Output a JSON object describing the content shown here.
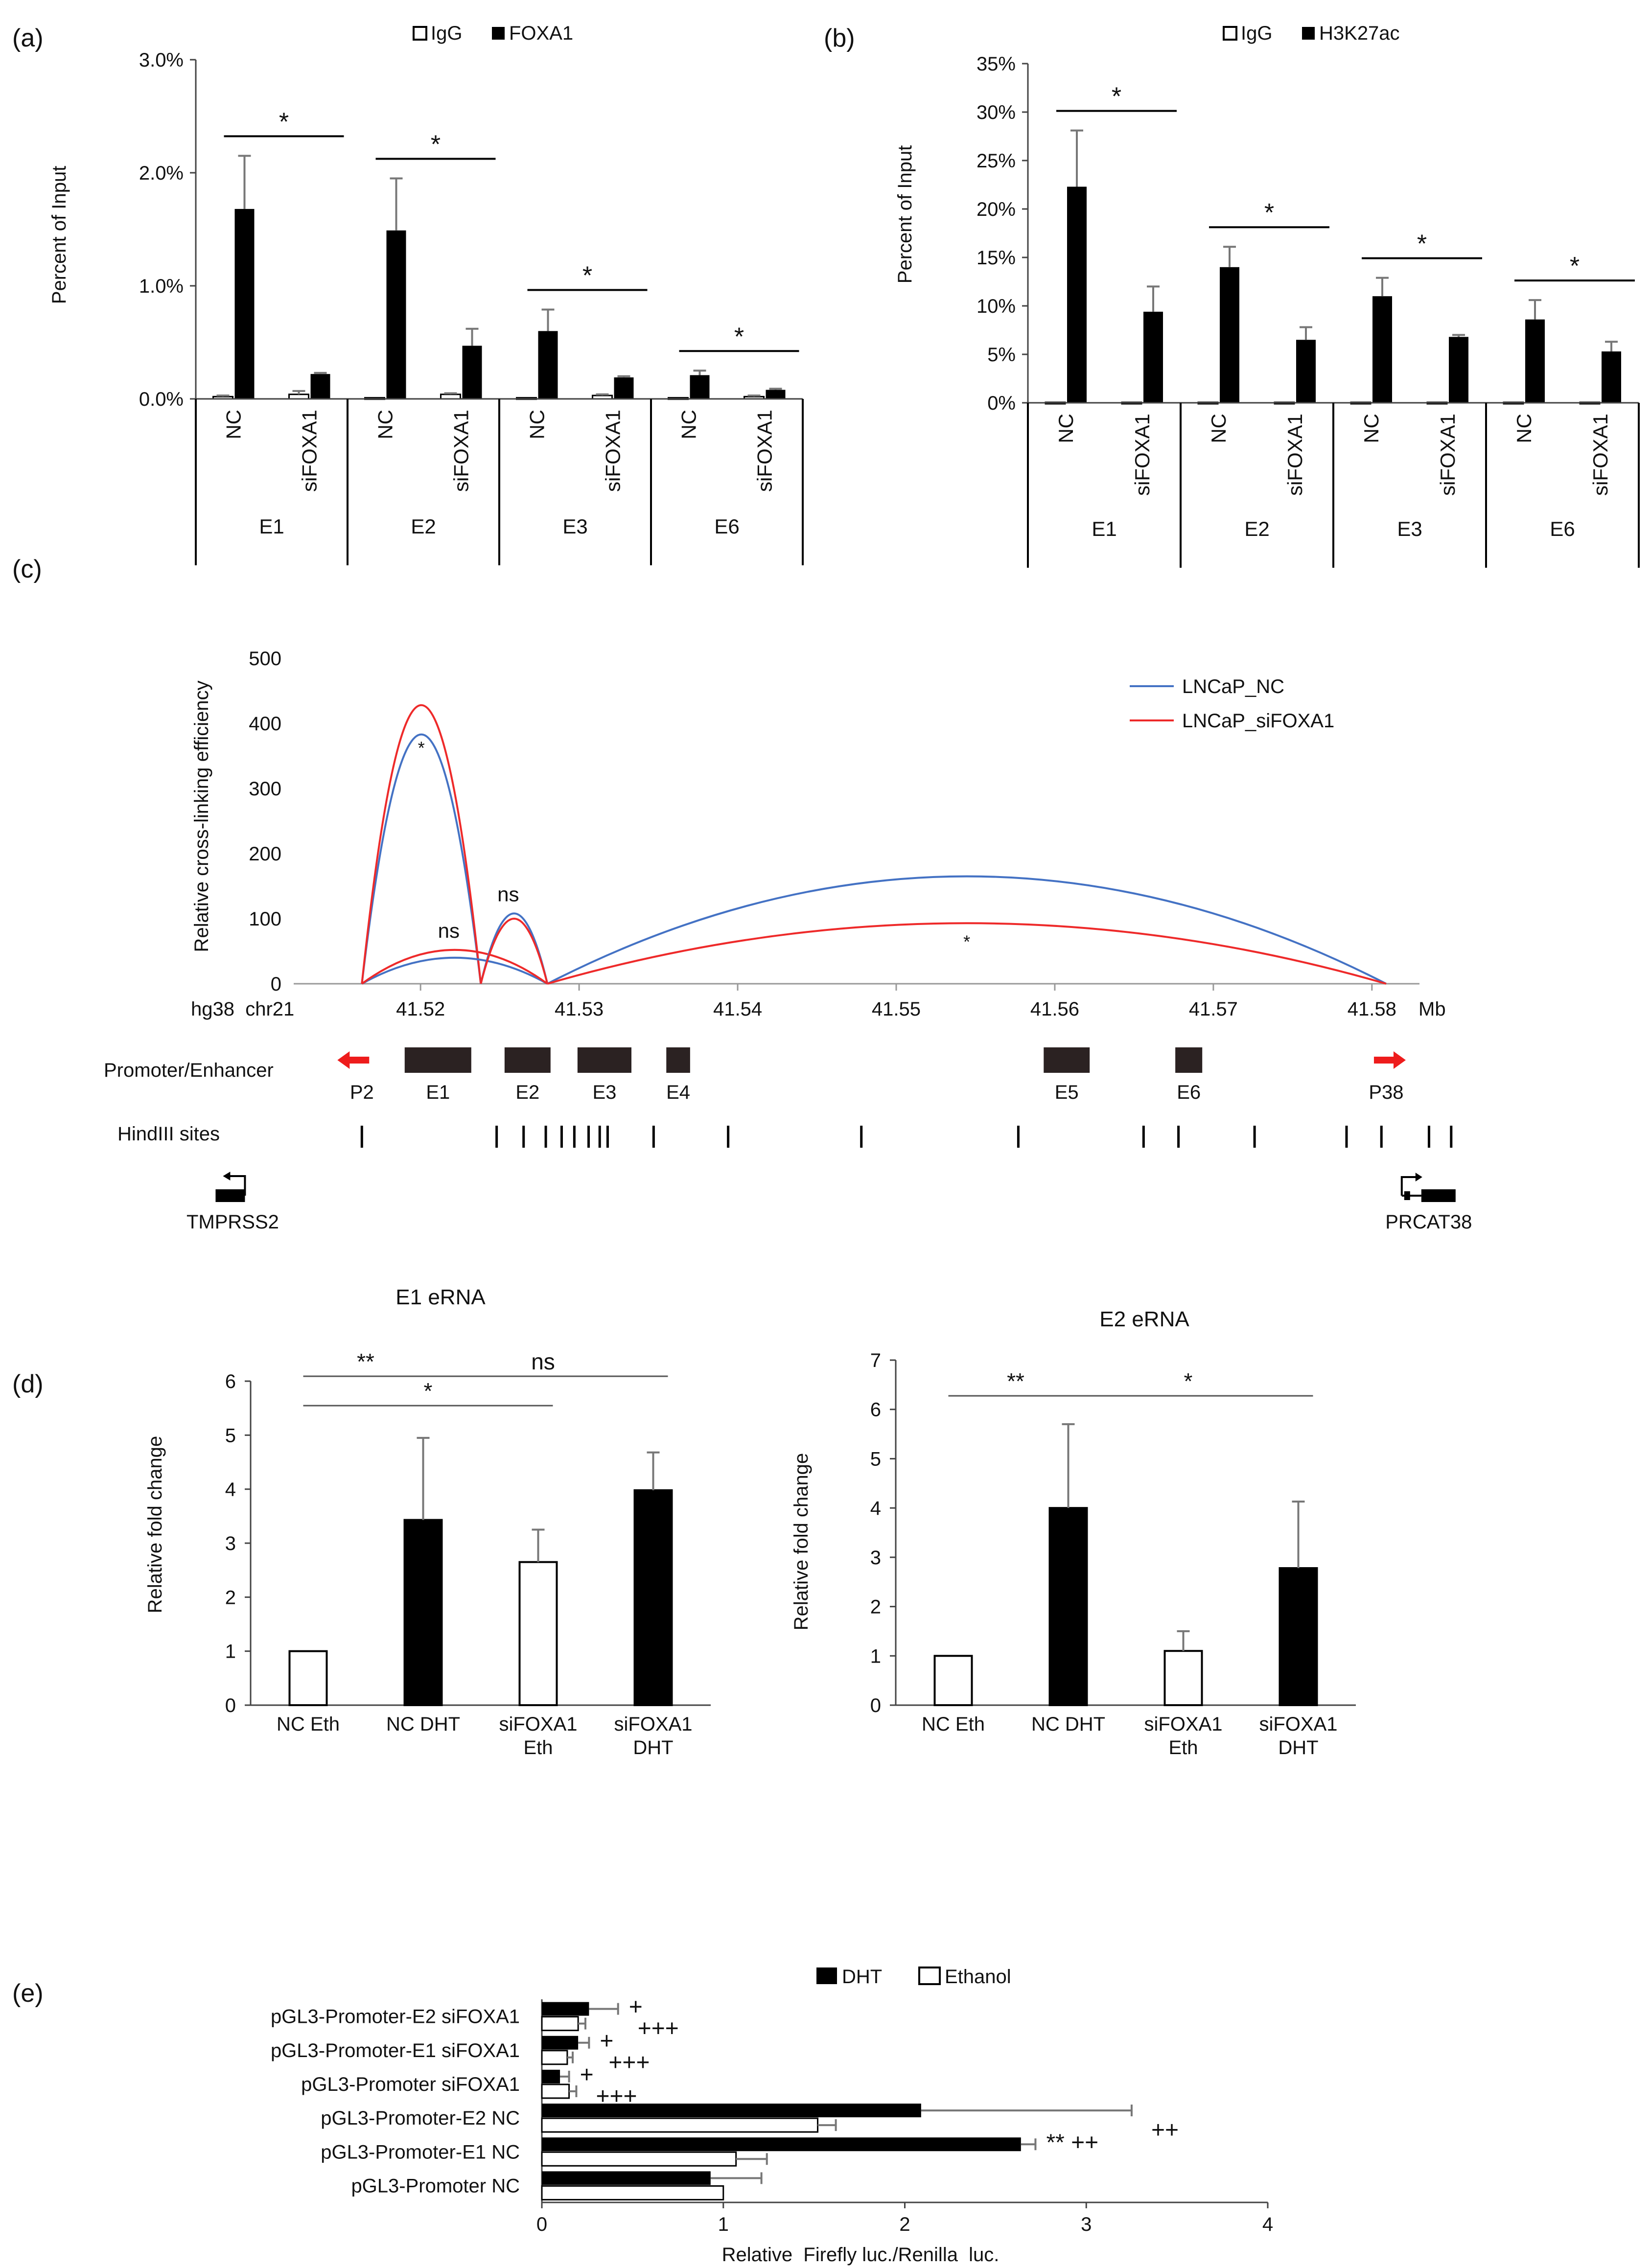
{
  "panels": {
    "a": {
      "label": "(a)",
      "ylabel": "Percent of Input",
      "legend": [
        "IgG",
        "FOXA1"
      ],
      "yticks": [
        "0.0%",
        "1.0%",
        "2.0%",
        "3.0%"
      ],
      "ymax": 0.03,
      "group_names": [
        "E1",
        "E2",
        "E3",
        "E6"
      ],
      "conditions": [
        "NC",
        "siFOXA1"
      ],
      "igg": [
        0.0002,
        0.0004,
        0.0001,
        0.0004,
        0.0001,
        0.0003,
        0.0001,
        0.0002
      ],
      "igg_err": [
        0.0001,
        0.0003,
        0,
        0.0001,
        0,
        0.0001,
        0,
        0.0001
      ],
      "target": [
        0.0168,
        0.0022,
        0.0149,
        0.0047,
        0.006,
        0.0019,
        0.0021,
        0.0008
      ],
      "target_err": [
        0.0047,
        0.0001,
        0.0046,
        0.0015,
        0.0019,
        0.0001,
        0.0004,
        0.0001
      ],
      "sig": [
        "*",
        "*",
        "*",
        "*"
      ]
    },
    "b": {
      "label": "(b)",
      "ylabel": "Percent of Input",
      "legend": [
        "IgG",
        "H3K27ac"
      ],
      "yticks": [
        "0%",
        "5%",
        "10%",
        "15%",
        "20%",
        "25%",
        "30%",
        "35%"
      ],
      "ymax": 0.35,
      "group_names": [
        "E1",
        "E2",
        "E3",
        "E6"
      ],
      "conditions": [
        "NC",
        "siFOXA1"
      ],
      "igg": [
        0.0005,
        0.0005,
        0.0005,
        0.0005,
        0.0005,
        0.0005,
        0.0005,
        0.0005
      ],
      "igg_err": [
        0,
        0,
        0,
        0,
        0,
        0,
        0,
        0
      ],
      "target": [
        0.223,
        0.094,
        0.14,
        0.065,
        0.11,
        0.068,
        0.086,
        0.053
      ],
      "target_err": [
        0.058,
        0.026,
        0.021,
        0.013,
        0.019,
        0.002,
        0.02,
        0.01
      ],
      "sig": [
        "*",
        "*",
        "*",
        "*"
      ]
    },
    "c": {
      "label": "(c)",
      "ylabel": "Relative cross-linking efficiency",
      "yticks": [
        "0",
        "100",
        "200",
        "300",
        "400",
        "500"
      ],
      "ymax": 500,
      "xstart": 41.512,
      "xend": 41.583,
      "xticks": [
        "41.52",
        "41.53",
        "41.54",
        "41.55",
        "41.56",
        "41.57",
        "41.58"
      ],
      "xticks_num": [
        41.52,
        41.53,
        41.54,
        41.55,
        41.56,
        41.57,
        41.58
      ],
      "axis_left_label": "hg38  chr21",
      "axis_unit": "Mb",
      "series": [
        {
          "name": "LNCaP_NC",
          "color": "#4472c4"
        },
        {
          "name": "LNCaP_siFOXA1",
          "color": "#ee2a2a"
        }
      ],
      "arcs": [
        {
          "from": 41.5163,
          "to": 41.5238,
          "nc": 383,
          "si": 428,
          "label": "*"
        },
        {
          "from": 41.5163,
          "to": 41.528,
          "nc": 40,
          "si": 52,
          "label": "ns"
        },
        {
          "from": 41.5238,
          "to": 41.528,
          "nc": 108,
          "si": 100,
          "label": "ns"
        },
        {
          "from": 41.528,
          "to": 41.5809,
          "nc": 165,
          "si": 93,
          "label": "*"
        }
      ],
      "track_label_enhancers": "Promoter/Enhancer",
      "enhancers": [
        {
          "name": "E1",
          "start": 41.519,
          "end": 41.5232
        },
        {
          "name": "E2",
          "start": 41.5253,
          "end": 41.5282
        },
        {
          "name": "E3",
          "start": 41.5299,
          "end": 41.5333
        },
        {
          "name": "E4",
          "start": 41.5355,
          "end": 41.537
        },
        {
          "name": "E5",
          "start": 41.5593,
          "end": 41.5622
        },
        {
          "name": "E6",
          "start": 41.5676,
          "end": 41.5693
        }
      ],
      "promoters": [
        {
          "name": "P2",
          "pos": 41.5163,
          "dir": "left"
        },
        {
          "name": "P38",
          "pos": 41.5809,
          "dir": "right"
        }
      ],
      "track_label_hind": "HindIII sites",
      "hind_sites": [
        41.5163,
        41.5248,
        41.5265,
        41.5279,
        41.5289,
        41.5297,
        41.5306,
        41.5313,
        41.5318,
        41.5347,
        41.5394,
        41.5478,
        41.5577,
        41.5656,
        41.5678,
        41.5726,
        41.5784,
        41.5806,
        41.5836,
        41.585
      ],
      "genes": [
        {
          "name": "TMPRSS2",
          "pos": 41.508,
          "strand": "-"
        },
        {
          "name": "PRCAT38",
          "pos": 41.5825,
          "strand": "+"
        }
      ]
    },
    "d": {
      "label": "(d)",
      "left_title": "E1 eRNA",
      "right_title": "E2 eRNA",
      "ylabel": "Relative  fold  change",
      "categories": [
        [
          "NC Eth"
        ],
        [
          "NC DHT"
        ],
        [
          "siFOXA1",
          "Eth"
        ],
        [
          "siFOXA1",
          "DHT"
        ]
      ],
      "left_yticks": [
        "0",
        "1",
        "2",
        "3",
        "4",
        "5",
        "6"
      ],
      "left_ymax": 6,
      "left_values": [
        1,
        3.43,
        2.65,
        3.98
      ],
      "left_err": [
        0,
        1.52,
        0.6,
        0.7
      ],
      "right_yticks": [
        "0",
        "1",
        "2",
        "3",
        "4",
        "5",
        "6",
        "7"
      ],
      "right_ymax": 7,
      "right_values": [
        1,
        4.0,
        1.1,
        2.78
      ],
      "right_err": [
        0,
        1.7,
        0.4,
        1.35
      ],
      "left_sig": [
        "**",
        "ns",
        "*"
      ],
      "right_sig": [
        "**",
        "*"
      ]
    },
    "e": {
      "label": "(e)",
      "legend": [
        "DHT",
        "Ethanol"
      ],
      "xlabel": "Relative  Firefly luc./Renilla  luc.",
      "xticks": [
        "0",
        "1",
        "2",
        "3",
        "4"
      ],
      "xmax": 4,
      "rows": [
        "pGL3-Promoter-E2 siFOXA1",
        "pGL3-Promoter-E1 siFOXA1",
        "pGL3-Promoter siFOXA1",
        "pGL3-Promoter-E2 NC",
        "pGL3-Promoter-E1 NC",
        "pGL3-Promoter NC"
      ],
      "dht": [
        0.26,
        0.2,
        0.1,
        2.09,
        2.64,
        0.93
      ],
      "dht_err": [
        0.16,
        0.06,
        0.05,
        1.16,
        0.08,
        0.28
      ],
      "eth": [
        0.2,
        0.14,
        0.15,
        1.52,
        1.07,
        1.0
      ],
      "eth_err": [
        0.04,
        0.03,
        0.04,
        0.1,
        0.17,
        0
      ],
      "marks": [
        [
          "+",
          "+++"
        ],
        [
          "+",
          "+++"
        ],
        [
          "+",
          "+++"
        ],
        [
          "",
          "++"
        ],
        [
          "** ++",
          ""
        ],
        [
          "",
          ""
        ]
      ]
    }
  }
}
